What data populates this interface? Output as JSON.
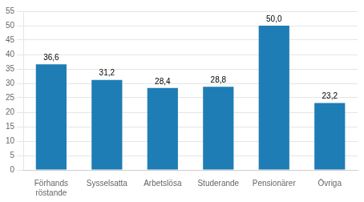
{
  "chart_data": {
    "type": "bar",
    "categories": [
      "Förhands\nröstande",
      "Sysselsatta",
      "Arbetslösa",
      "Studerande",
      "Pensionärer",
      "Övriga"
    ],
    "values": [
      36.6,
      31.2,
      28.4,
      28.8,
      50.0,
      23.2
    ],
    "value_labels": [
      "36,6",
      "31,2",
      "28,4",
      "28,8",
      "50,0",
      "23,2"
    ],
    "data_labels": true,
    "color": "#1e7db5",
    "ylim": [
      0,
      55
    ],
    "yticks": [
      0,
      5,
      10,
      15,
      20,
      25,
      30,
      35,
      40,
      45,
      50,
      55
    ],
    "grid": true
  }
}
